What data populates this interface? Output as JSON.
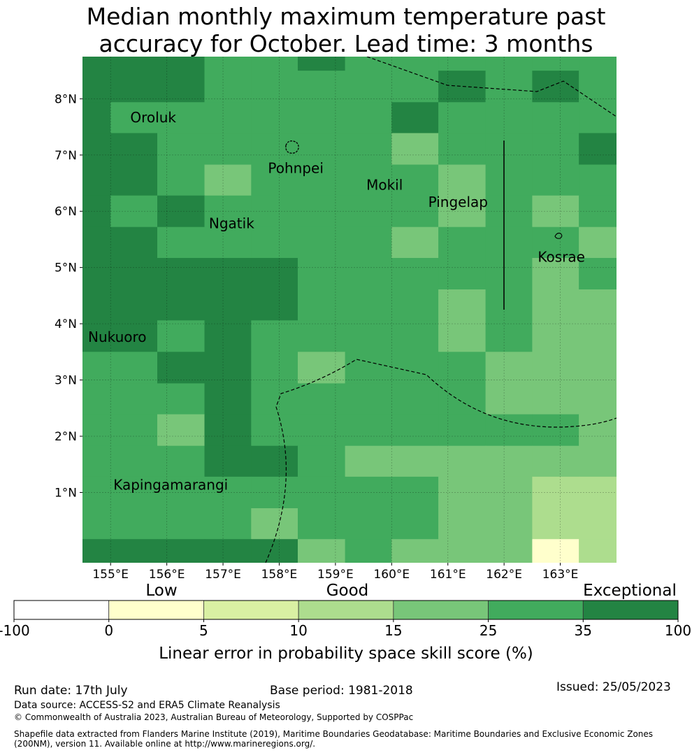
{
  "title_line1": "Median monthly maximum temperature past",
  "title_line2": "accuracy for October. Lead time: 3 months",
  "map": {
    "lon_range": [
      154.5,
      164.0
    ],
    "lat_range": [
      -0.25,
      8.75
    ],
    "lon_ticks": [
      "155°E",
      "156°E",
      "157°E",
      "158°E",
      "159°E",
      "160°E",
      "161°E",
      "162°E",
      "163°E"
    ],
    "lat_ticks": [
      "1°N",
      "2°N",
      "3°N",
      "4°N",
      "5°N",
      "6°N",
      "7°N",
      "8°N"
    ],
    "grid": true,
    "places": [
      {
        "name": "Oroluk",
        "lon": 155.35,
        "lat": 7.58
      },
      {
        "name": "Pohnpei",
        "lon": 157.8,
        "lat": 6.68
      },
      {
        "name": "Mokil",
        "lon": 159.55,
        "lat": 6.38
      },
      {
        "name": "Pingelap",
        "lon": 160.65,
        "lat": 6.08
      },
      {
        "name": "Ngatik",
        "lon": 156.75,
        "lat": 5.7
      },
      {
        "name": "Kosrae",
        "lon": 162.6,
        "lat": 5.1
      },
      {
        "name": "Nukuoro",
        "lon": 154.6,
        "lat": 3.68
      },
      {
        "name": "Kapingamarangi",
        "lon": 155.05,
        "lat": 1.05
      }
    ],
    "skill_grid": {
      "lon_edges": [
        154.5,
        155.0,
        155.83,
        156.67,
        157.5,
        158.33,
        159.17,
        160.0,
        160.83,
        161.67,
        162.5,
        163.33,
        164.0
      ],
      "lat_edges_top_down": [
        8.75,
        8.5,
        7.94,
        7.39,
        6.83,
        6.28,
        5.72,
        5.17,
        4.61,
        4.06,
        3.5,
        2.94,
        2.39,
        1.83,
        1.28,
        0.72,
        0.17,
        -0.25
      ],
      "rows": [
        [
          6,
          6,
          6,
          5,
          5,
          6,
          5,
          5,
          5,
          5,
          5,
          5
        ],
        [
          6,
          6,
          6,
          5,
          5,
          5,
          5,
          5,
          6,
          5,
          6,
          5
        ],
        [
          6,
          5,
          5,
          5,
          5,
          5,
          5,
          6,
          5,
          5,
          5,
          5
        ],
        [
          6,
          6,
          5,
          5,
          5,
          5,
          5,
          4,
          5,
          5,
          5,
          6
        ],
        [
          6,
          6,
          5,
          4,
          5,
          5,
          5,
          5,
          4,
          5,
          5,
          5
        ],
        [
          6,
          5,
          6,
          5,
          5,
          5,
          5,
          5,
          4,
          5,
          4,
          5
        ],
        [
          6,
          6,
          5,
          5,
          5,
          5,
          5,
          4,
          5,
          5,
          5,
          4
        ],
        [
          6,
          6,
          6,
          6,
          6,
          5,
          5,
          5,
          5,
          5,
          4,
          5
        ],
        [
          6,
          6,
          6,
          6,
          6,
          5,
          5,
          5,
          4,
          5,
          4,
          4
        ],
        [
          6,
          6,
          5,
          6,
          5,
          5,
          5,
          5,
          4,
          5,
          4,
          4
        ],
        [
          5,
          5,
          6,
          6,
          5,
          4,
          5,
          5,
          5,
          4,
          4,
          4
        ],
        [
          5,
          5,
          5,
          6,
          5,
          5,
          5,
          5,
          5,
          4,
          4,
          4
        ],
        [
          5,
          5,
          4,
          6,
          5,
          5,
          5,
          5,
          5,
          5,
          5,
          4
        ],
        [
          5,
          5,
          5,
          6,
          6,
          5,
          4,
          4,
          4,
          4,
          4,
          4
        ],
        [
          5,
          5,
          5,
          5,
          5,
          5,
          5,
          5,
          4,
          4,
          3,
          3
        ],
        [
          5,
          5,
          5,
          5,
          4,
          5,
          5,
          5,
          4,
          4,
          3,
          3
        ],
        [
          6,
          6,
          6,
          6,
          6,
          4,
          5,
          4,
          4,
          4,
          1,
          3
        ]
      ]
    }
  },
  "colorbar": {
    "categories": [
      {
        "label": "Low"
      },
      {
        "label": "Good"
      },
      {
        "label": "Exceptional"
      }
    ],
    "colors": [
      "#ffffff",
      "#ffffcc",
      "#d9f0a3",
      "#addd8e",
      "#78c679",
      "#41ab5d",
      "#238443"
    ],
    "tick_labels": [
      "-100",
      "0",
      "5",
      "10",
      "15",
      "25",
      "35",
      "100"
    ],
    "label": "Linear error in probability space skill score (%)"
  },
  "footer": {
    "run_date": "Run date: 17th July",
    "base_period": "Base period: 1981-2018",
    "issued": "Issued: 25/05/2023",
    "data_source": "Data source: ACCESS-S2 and ERA5 Climate Reanalysis",
    "copyright": "© Commonwealth of Australia 2023, Australian Bureau of Meteorology, Supported by COSPPac",
    "shapefile_line1": "Shapefile data extracted from Flanders Marine Institute (2019), Maritime Boundaries Geodatabase: Maritime Boundaries and Exclusive Economic Zones",
    "shapefile_line2": "(200NM), version 11. Available online at http://www.marineregions.org/."
  }
}
